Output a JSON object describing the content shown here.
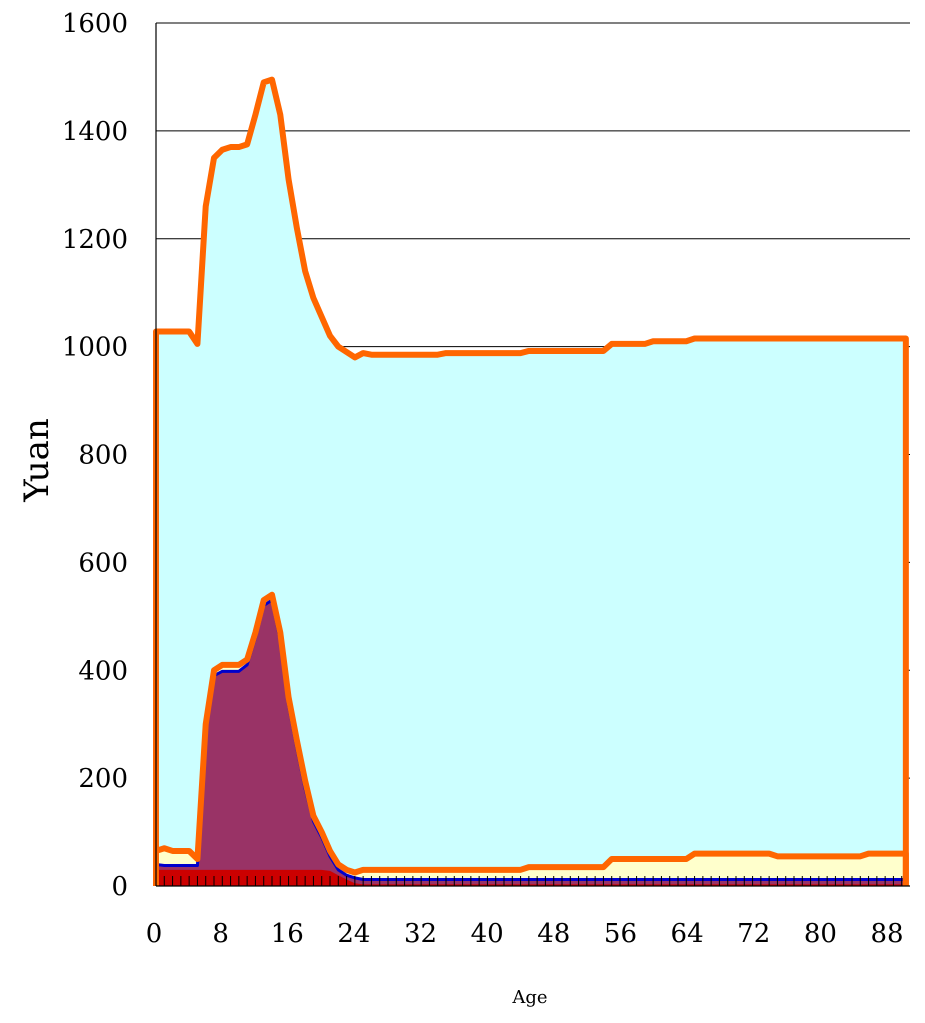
{
  "chart_data": {
    "type": "area",
    "xlabel": "Age",
    "ylabel": "Yuan",
    "xlim": [
      0,
      91
    ],
    "ylim": [
      0,
      1600
    ],
    "x_ticks": [
      0,
      8,
      16,
      24,
      32,
      40,
      48,
      56,
      64,
      72,
      80,
      88
    ],
    "y_ticks": [
      0,
      200,
      400,
      600,
      800,
      1000,
      1200,
      1400,
      1600
    ],
    "grid": "horizontal",
    "legend": "none",
    "colors": {
      "total_fill": "#ccffff",
      "total_line": "#ff6600",
      "mid_fill": "#ffffcc",
      "mid_line": "#ff6600",
      "education_fill": "#993366",
      "education_line": "#0000cc",
      "base_fill": "#cc0000",
      "grid": "#000000"
    },
    "series": [
      {
        "key": "total",
        "points": [
          [
            0,
            1028
          ],
          [
            1,
            1028
          ],
          [
            2,
            1028
          ],
          [
            3,
            1028
          ],
          [
            4,
            1028
          ],
          [
            5,
            1005
          ],
          [
            6,
            1260
          ],
          [
            7,
            1350
          ],
          [
            8,
            1365
          ],
          [
            9,
            1370
          ],
          [
            10,
            1370
          ],
          [
            11,
            1375
          ],
          [
            12,
            1430
          ],
          [
            13,
            1490
          ],
          [
            14,
            1495
          ],
          [
            15,
            1430
          ],
          [
            16,
            1310
          ],
          [
            17,
            1220
          ],
          [
            18,
            1140
          ],
          [
            19,
            1090
          ],
          [
            20,
            1055
          ],
          [
            21,
            1020
          ],
          [
            22,
            1000
          ],
          [
            23,
            990
          ],
          [
            24,
            980
          ],
          [
            25,
            988
          ],
          [
            26,
            985
          ],
          [
            27,
            985
          ],
          [
            28,
            985
          ],
          [
            29,
            985
          ],
          [
            30,
            985
          ],
          [
            31,
            985
          ],
          [
            32,
            985
          ],
          [
            33,
            985
          ],
          [
            34,
            985
          ],
          [
            35,
            988
          ],
          [
            36,
            988
          ],
          [
            37,
            988
          ],
          [
            38,
            988
          ],
          [
            39,
            988
          ],
          [
            40,
            988
          ],
          [
            41,
            988
          ],
          [
            42,
            988
          ],
          [
            43,
            988
          ],
          [
            44,
            988
          ],
          [
            45,
            992
          ],
          [
            46,
            992
          ],
          [
            47,
            992
          ],
          [
            48,
            992
          ],
          [
            49,
            992
          ],
          [
            50,
            992
          ],
          [
            51,
            992
          ],
          [
            52,
            992
          ],
          [
            53,
            992
          ],
          [
            54,
            992
          ],
          [
            55,
            1005
          ],
          [
            56,
            1005
          ],
          [
            57,
            1005
          ],
          [
            58,
            1005
          ],
          [
            59,
            1005
          ],
          [
            60,
            1010
          ],
          [
            61,
            1010
          ],
          [
            62,
            1010
          ],
          [
            63,
            1010
          ],
          [
            64,
            1010
          ],
          [
            65,
            1015
          ],
          [
            66,
            1015
          ],
          [
            67,
            1015
          ],
          [
            68,
            1015
          ],
          [
            69,
            1015
          ],
          [
            70,
            1015
          ],
          [
            71,
            1015
          ],
          [
            72,
            1015
          ],
          [
            73,
            1015
          ],
          [
            74,
            1015
          ],
          [
            75,
            1015
          ],
          [
            76,
            1015
          ],
          [
            77,
            1015
          ],
          [
            78,
            1015
          ],
          [
            79,
            1015
          ],
          [
            80,
            1015
          ],
          [
            81,
            1015
          ],
          [
            82,
            1015
          ],
          [
            83,
            1015
          ],
          [
            84,
            1015
          ],
          [
            85,
            1015
          ],
          [
            86,
            1015
          ],
          [
            87,
            1015
          ],
          [
            88,
            1015
          ],
          [
            89,
            1015
          ],
          [
            90,
            1015
          ],
          [
            90.5,
            1015
          ]
        ]
      },
      {
        "key": "mid",
        "points": [
          [
            0,
            65
          ],
          [
            1,
            70
          ],
          [
            2,
            65
          ],
          [
            3,
            65
          ],
          [
            4,
            65
          ],
          [
            5,
            50
          ],
          [
            6,
            300
          ],
          [
            7,
            400
          ],
          [
            8,
            410
          ],
          [
            9,
            410
          ],
          [
            10,
            410
          ],
          [
            11,
            420
          ],
          [
            12,
            470
          ],
          [
            13,
            530
          ],
          [
            14,
            540
          ],
          [
            15,
            470
          ],
          [
            16,
            350
          ],
          [
            17,
            270
          ],
          [
            18,
            195
          ],
          [
            19,
            130
          ],
          [
            20,
            100
          ],
          [
            21,
            65
          ],
          [
            22,
            40
          ],
          [
            23,
            30
          ],
          [
            24,
            25
          ],
          [
            25,
            30
          ],
          [
            26,
            30
          ],
          [
            27,
            30
          ],
          [
            28,
            30
          ],
          [
            29,
            30
          ],
          [
            30,
            30
          ],
          [
            31,
            30
          ],
          [
            32,
            30
          ],
          [
            33,
            30
          ],
          [
            34,
            30
          ],
          [
            35,
            30
          ],
          [
            36,
            30
          ],
          [
            37,
            30
          ],
          [
            38,
            30
          ],
          [
            39,
            30
          ],
          [
            40,
            30
          ],
          [
            41,
            30
          ],
          [
            42,
            30
          ],
          [
            43,
            30
          ],
          [
            44,
            30
          ],
          [
            45,
            35
          ],
          [
            46,
            35
          ],
          [
            47,
            35
          ],
          [
            48,
            35
          ],
          [
            49,
            35
          ],
          [
            50,
            35
          ],
          [
            51,
            35
          ],
          [
            52,
            35
          ],
          [
            53,
            35
          ],
          [
            54,
            35
          ],
          [
            55,
            50
          ],
          [
            56,
            50
          ],
          [
            57,
            50
          ],
          [
            58,
            50
          ],
          [
            59,
            50
          ],
          [
            60,
            50
          ],
          [
            61,
            50
          ],
          [
            62,
            50
          ],
          [
            63,
            50
          ],
          [
            64,
            50
          ],
          [
            65,
            60
          ],
          [
            66,
            60
          ],
          [
            67,
            60
          ],
          [
            68,
            60
          ],
          [
            69,
            60
          ],
          [
            70,
            60
          ],
          [
            71,
            60
          ],
          [
            72,
            60
          ],
          [
            73,
            60
          ],
          [
            74,
            60
          ],
          [
            75,
            55
          ],
          [
            76,
            55
          ],
          [
            77,
            55
          ],
          [
            78,
            55
          ],
          [
            79,
            55
          ],
          [
            80,
            55
          ],
          [
            81,
            55
          ],
          [
            82,
            55
          ],
          [
            83,
            55
          ],
          [
            84,
            55
          ],
          [
            85,
            55
          ],
          [
            86,
            60
          ],
          [
            87,
            60
          ],
          [
            88,
            60
          ],
          [
            89,
            60
          ],
          [
            90,
            60
          ],
          [
            90.5,
            60
          ]
        ]
      },
      {
        "key": "education",
        "points": [
          [
            0,
            40
          ],
          [
            1,
            38
          ],
          [
            2,
            38
          ],
          [
            3,
            38
          ],
          [
            4,
            38
          ],
          [
            5,
            38
          ],
          [
            6,
            290
          ],
          [
            7,
            390
          ],
          [
            8,
            398
          ],
          [
            9,
            398
          ],
          [
            10,
            398
          ],
          [
            11,
            410
          ],
          [
            12,
            460
          ],
          [
            13,
            520
          ],
          [
            14,
            530
          ],
          [
            15,
            455
          ],
          [
            16,
            335
          ],
          [
            17,
            255
          ],
          [
            18,
            180
          ],
          [
            19,
            120
          ],
          [
            20,
            90
          ],
          [
            21,
            55
          ],
          [
            22,
            30
          ],
          [
            23,
            20
          ],
          [
            24,
            15
          ],
          [
            25,
            12
          ],
          [
            26,
            12
          ],
          [
            27,
            12
          ],
          [
            28,
            12
          ],
          [
            29,
            12
          ],
          [
            30,
            12
          ],
          [
            31,
            12
          ],
          [
            32,
            12
          ],
          [
            33,
            12
          ],
          [
            34,
            12
          ],
          [
            35,
            12
          ],
          [
            36,
            12
          ],
          [
            37,
            12
          ],
          [
            38,
            12
          ],
          [
            39,
            12
          ],
          [
            40,
            12
          ],
          [
            41,
            12
          ],
          [
            42,
            12
          ],
          [
            43,
            12
          ],
          [
            44,
            12
          ],
          [
            45,
            12
          ],
          [
            46,
            12
          ],
          [
            47,
            12
          ],
          [
            48,
            12
          ],
          [
            49,
            12
          ],
          [
            50,
            12
          ],
          [
            51,
            12
          ],
          [
            52,
            12
          ],
          [
            53,
            12
          ],
          [
            54,
            12
          ],
          [
            55,
            12
          ],
          [
            56,
            12
          ],
          [
            57,
            12
          ],
          [
            58,
            12
          ],
          [
            59,
            12
          ],
          [
            60,
            12
          ],
          [
            61,
            12
          ],
          [
            62,
            12
          ],
          [
            63,
            12
          ],
          [
            64,
            12
          ],
          [
            65,
            12
          ],
          [
            66,
            12
          ],
          [
            67,
            12
          ],
          [
            68,
            12
          ],
          [
            69,
            12
          ],
          [
            70,
            12
          ],
          [
            71,
            12
          ],
          [
            72,
            12
          ],
          [
            73,
            12
          ],
          [
            74,
            12
          ],
          [
            75,
            12
          ],
          [
            76,
            12
          ],
          [
            77,
            12
          ],
          [
            78,
            12
          ],
          [
            79,
            12
          ],
          [
            80,
            12
          ],
          [
            81,
            12
          ],
          [
            82,
            12
          ],
          [
            83,
            12
          ],
          [
            84,
            12
          ],
          [
            85,
            12
          ],
          [
            86,
            12
          ],
          [
            87,
            12
          ],
          [
            88,
            12
          ],
          [
            89,
            12
          ],
          [
            90,
            12
          ],
          [
            90.5,
            12
          ]
        ]
      },
      {
        "key": "base",
        "points": [
          [
            0,
            30
          ],
          [
            1,
            30
          ],
          [
            2,
            30
          ],
          [
            3,
            30
          ],
          [
            4,
            30
          ],
          [
            5,
            30
          ],
          [
            6,
            30
          ],
          [
            7,
            30
          ],
          [
            8,
            30
          ],
          [
            9,
            30
          ],
          [
            10,
            30
          ],
          [
            11,
            30
          ],
          [
            12,
            30
          ],
          [
            13,
            30
          ],
          [
            14,
            30
          ],
          [
            15,
            30
          ],
          [
            16,
            30
          ],
          [
            17,
            30
          ],
          [
            18,
            30
          ],
          [
            19,
            30
          ],
          [
            20,
            30
          ],
          [
            21,
            28
          ],
          [
            22,
            20
          ],
          [
            23,
            12
          ],
          [
            24,
            5
          ],
          [
            25,
            3
          ],
          [
            30,
            3
          ],
          [
            40,
            3
          ],
          [
            50,
            3
          ],
          [
            60,
            3
          ],
          [
            70,
            3
          ],
          [
            80,
            3
          ],
          [
            90,
            3
          ],
          [
            90.5,
            3
          ]
        ]
      }
    ]
  }
}
